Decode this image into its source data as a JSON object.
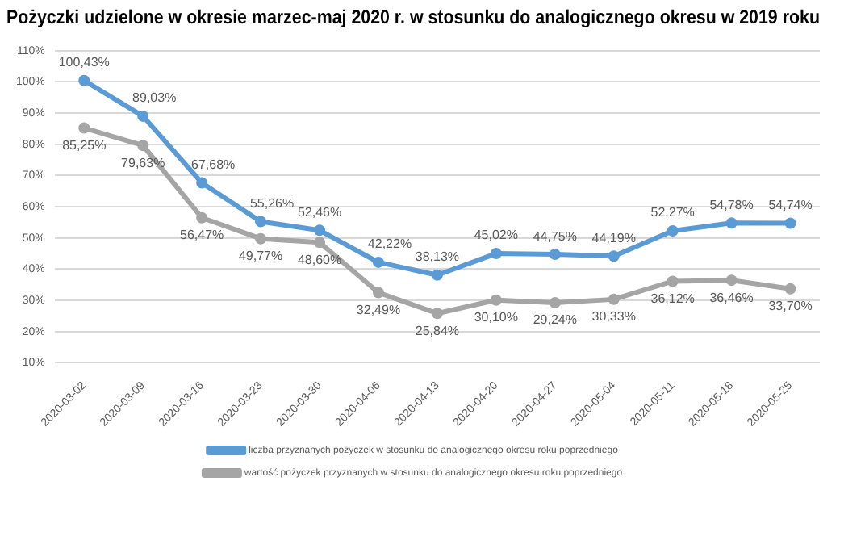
{
  "chart_data": {
    "type": "line",
    "title": "Pożyczki udzielone w okresie marzec-maj 2020 r. w stosunku do analogicznego okresu w 2019 roku",
    "categories": [
      "2020-03-02",
      "2020-03-09",
      "2020-03-16",
      "2020-03-23",
      "2020-03-30",
      "2020-04-06",
      "2020-04-13",
      "2020-04-20",
      "2020-04-27",
      "2020-05-04",
      "2020-05-11",
      "2020-05-18",
      "2020-05-25"
    ],
    "series": [
      {
        "name": "liczba przyznanych pożyczek w stosunku do analogicznego okresu roku poprzedniego",
        "color": "#5b9bd5",
        "values": [
          100.43,
          89.03,
          67.68,
          55.26,
          52.46,
          42.22,
          38.13,
          45.02,
          44.75,
          44.19,
          52.27,
          54.78,
          54.74
        ],
        "value_labels": [
          "100,43%",
          "89,03%",
          "67,68%",
          "55,26%",
          "52,46%",
          "42,22%",
          "38,13%",
          "45,02%",
          "44,75%",
          "44,19%",
          "52,27%",
          "54,78%",
          "54,74%"
        ]
      },
      {
        "name": "wartość pożyczek przyznanych w stosunku do analogicznego okresu roku poprzedniego",
        "color": "#a5a5a5",
        "values": [
          85.25,
          79.63,
          56.47,
          49.77,
          48.6,
          32.49,
          25.84,
          30.1,
          29.24,
          30.33,
          36.12,
          36.46,
          33.7
        ],
        "value_labels": [
          "85,25%",
          "79,63%",
          "56,47%",
          "49,77%",
          "48,60%",
          "32,49%",
          "25,84%",
          "30,10%",
          "29,24%",
          "30,33%",
          "36,12%",
          "36,46%",
          "33,70%"
        ]
      }
    ],
    "ylim": [
      10,
      110
    ],
    "yticks": [
      {
        "value": 10,
        "label": "10%"
      },
      {
        "value": 20,
        "label": "20%"
      },
      {
        "value": 30,
        "label": "30%"
      },
      {
        "value": 40,
        "label": "40%"
      },
      {
        "value": 50,
        "label": "50%"
      },
      {
        "value": 60,
        "label": "60%"
      },
      {
        "value": 70,
        "label": "70%"
      },
      {
        "value": 80,
        "label": "80%"
      },
      {
        "value": 90,
        "label": "90%"
      },
      {
        "value": 100,
        "label": "100%"
      },
      {
        "value": 110,
        "label": "110%"
      }
    ],
    "grid": "y",
    "legend": "bottom",
    "marker": "circle"
  }
}
